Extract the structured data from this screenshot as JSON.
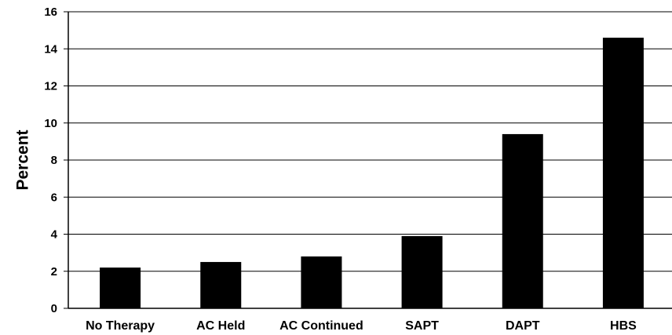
{
  "chart_data": {
    "type": "bar",
    "categories": [
      "No Therapy",
      "AC Held",
      "AC Continued",
      "SAPT",
      "DAPT",
      "HBS"
    ],
    "values": [
      2.2,
      2.5,
      2.8,
      3.9,
      9.4,
      14.6
    ],
    "title": "",
    "xlabel": "",
    "ylabel": "Percent",
    "ylim": [
      0,
      16
    ],
    "yticks": [
      0,
      2,
      4,
      6,
      8,
      10,
      12,
      14,
      16
    ],
    "grid": true,
    "bar_color": "#000000",
    "grid_color": "#000000"
  }
}
